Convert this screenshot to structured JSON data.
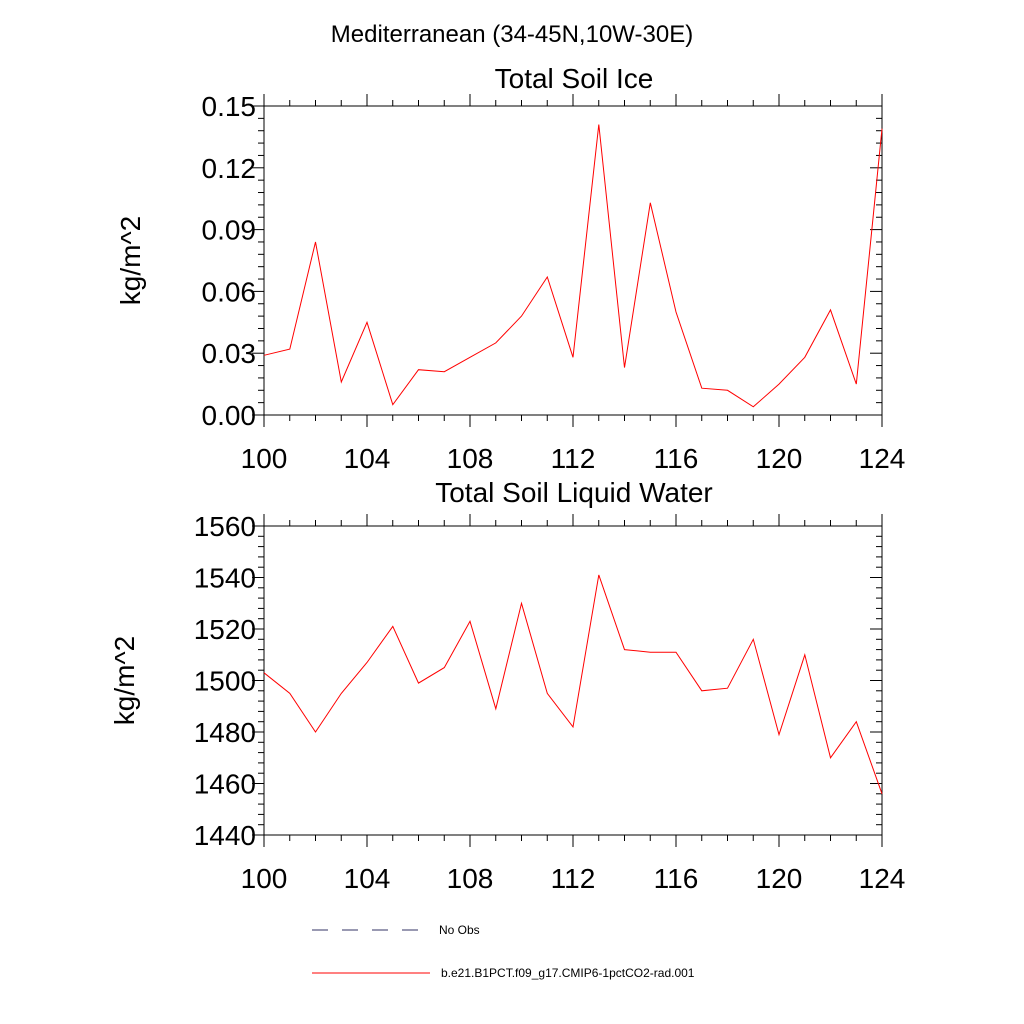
{
  "figure": {
    "title": "Mediterranean (34-45N,10W-30E)"
  },
  "legend": {
    "entries": [
      {
        "label": "No Obs",
        "style": "dashed",
        "color": "#333366"
      },
      {
        "label": "b.e21.B1PCT.f09_g17.CMIP6-1pctCO2-rad.001",
        "style": "solid",
        "color": "#ff0000"
      }
    ]
  },
  "chart_data": [
    {
      "type": "line",
      "title": "Total Soil Ice",
      "xlabel": "",
      "ylabel": "kg/m^2",
      "xlim": [
        100,
        124
      ],
      "ylim": [
        0,
        0.15
      ],
      "xticks": [
        100,
        104,
        108,
        112,
        116,
        120,
        124
      ],
      "yticks": [
        0,
        0.03,
        0.06,
        0.09,
        0.12,
        0.15
      ],
      "ytick_labels": [
        "0.00",
        "0.03",
        "0.06",
        "0.09",
        "0.12",
        "0.15"
      ],
      "grid": false,
      "series": [
        {
          "name": "b.e21.B1PCT.f09_g17.CMIP6-1pctCO2-rad.001",
          "color": "#ff0000",
          "x": [
            100,
            101,
            102,
            103,
            104,
            105,
            106,
            107,
            108,
            109,
            110,
            111,
            112,
            113,
            114,
            115,
            116,
            117,
            118,
            119,
            120,
            121,
            122,
            123,
            124
          ],
          "values": [
            0.029,
            0.032,
            0.084,
            0.016,
            0.045,
            0.005,
            0.022,
            0.021,
            0.028,
            0.035,
            0.048,
            0.067,
            0.028,
            0.141,
            0.023,
            0.103,
            0.05,
            0.013,
            0.012,
            0.004,
            0.015,
            0.028,
            0.051,
            0.015,
            0.139
          ]
        }
      ]
    },
    {
      "type": "line",
      "title": "Total Soil Liquid Water",
      "xlabel": "",
      "ylabel": "kg/m^2",
      "xlim": [
        100,
        124
      ],
      "ylim": [
        1440,
        1560
      ],
      "xticks": [
        100,
        104,
        108,
        112,
        116,
        120,
        124
      ],
      "yticks": [
        1440,
        1460,
        1480,
        1500,
        1520,
        1540,
        1560
      ],
      "ytick_labels": [
        "1440",
        "1460",
        "1480",
        "1500",
        "1520",
        "1540",
        "1560"
      ],
      "grid": false,
      "series": [
        {
          "name": "b.e21.B1PCT.f09_g17.CMIP6-1pctCO2-rad.001",
          "color": "#ff0000",
          "x": [
            100,
            101,
            102,
            103,
            104,
            105,
            106,
            107,
            108,
            109,
            110,
            111,
            112,
            113,
            114,
            115,
            116,
            117,
            118,
            119,
            120,
            121,
            122,
            123,
            124
          ],
          "values": [
            1503,
            1495,
            1480,
            1495,
            1507,
            1521,
            1499,
            1505,
            1523,
            1489,
            1530,
            1495,
            1482,
            1541,
            1512,
            1511,
            1511,
            1496,
            1497,
            1516,
            1479,
            1510,
            1470,
            1484,
            1456
          ]
        }
      ]
    }
  ]
}
